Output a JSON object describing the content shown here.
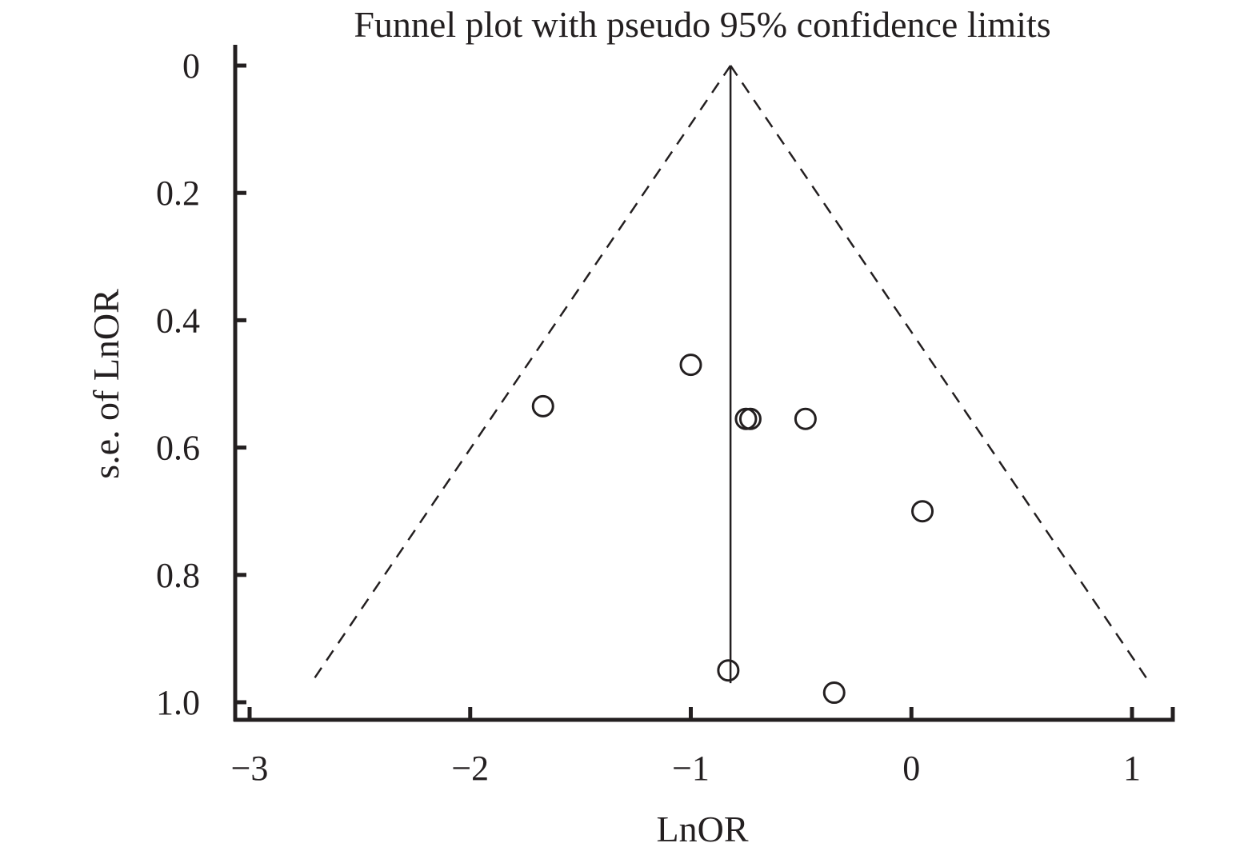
{
  "chart_data": {
    "type": "scatter",
    "title": "Funnel plot with pseudo 95% confidence limits",
    "xlabel": "LnOR",
    "ylabel": "s.e. of LnOR",
    "xlim": [
      -3.07,
      1.2
    ],
    "ylim": [
      0,
      1.0
    ],
    "y_reversed": true,
    "x_ticks": [
      -3,
      -2,
      -1,
      0,
      1
    ],
    "x_tick_labels": [
      "−3",
      "−2",
      "−1",
      "0",
      "1"
    ],
    "y_ticks": [
      0,
      0.2,
      0.4,
      0.6,
      0.8,
      1.0
    ],
    "y_tick_labels": [
      "0",
      "0.2",
      "0.4",
      "0.6",
      "0.8",
      "1.0"
    ],
    "pooled_estimate": -0.82,
    "pooled_line_se_max": 0.97,
    "ci_multiplier": 1.96,
    "ci_se_max": 0.97,
    "marker": "hollow-circle",
    "grid": false,
    "points": [
      {
        "x": -1.67,
        "y": 0.535
      },
      {
        "x": -1.0,
        "y": 0.47
      },
      {
        "x": -0.75,
        "y": 0.555
      },
      {
        "x": -0.73,
        "y": 0.555
      },
      {
        "x": -0.48,
        "y": 0.555
      },
      {
        "x": 0.05,
        "y": 0.7
      },
      {
        "x": -0.83,
        "y": 0.95
      },
      {
        "x": -0.35,
        "y": 0.985
      }
    ]
  }
}
